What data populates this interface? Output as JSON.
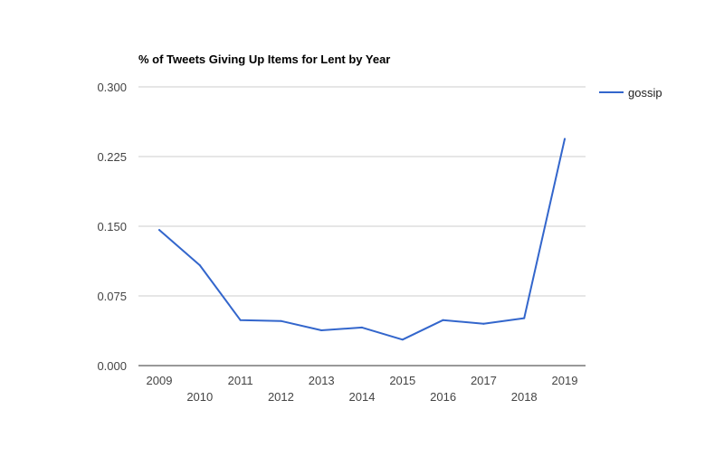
{
  "chart_data": {
    "type": "line",
    "title": "% of Tweets Giving Up Items for Lent by Year",
    "xlabel": "",
    "ylabel": "",
    "x": [
      "2009",
      "2010",
      "2011",
      "2012",
      "2013",
      "2014",
      "2015",
      "2016",
      "2017",
      "2018",
      "2019"
    ],
    "series": [
      {
        "name": "gossip",
        "color": "#3366cc",
        "values": [
          0.146,
          0.108,
          0.049,
          0.048,
          0.038,
          0.041,
          0.028,
          0.049,
          0.045,
          0.051,
          0.244
        ]
      }
    ],
    "ylim": [
      0,
      0.3
    ],
    "yticks": [
      "0.000",
      "0.075",
      "0.150",
      "0.225",
      "0.300"
    ],
    "grid": true,
    "legend_position": "right"
  }
}
